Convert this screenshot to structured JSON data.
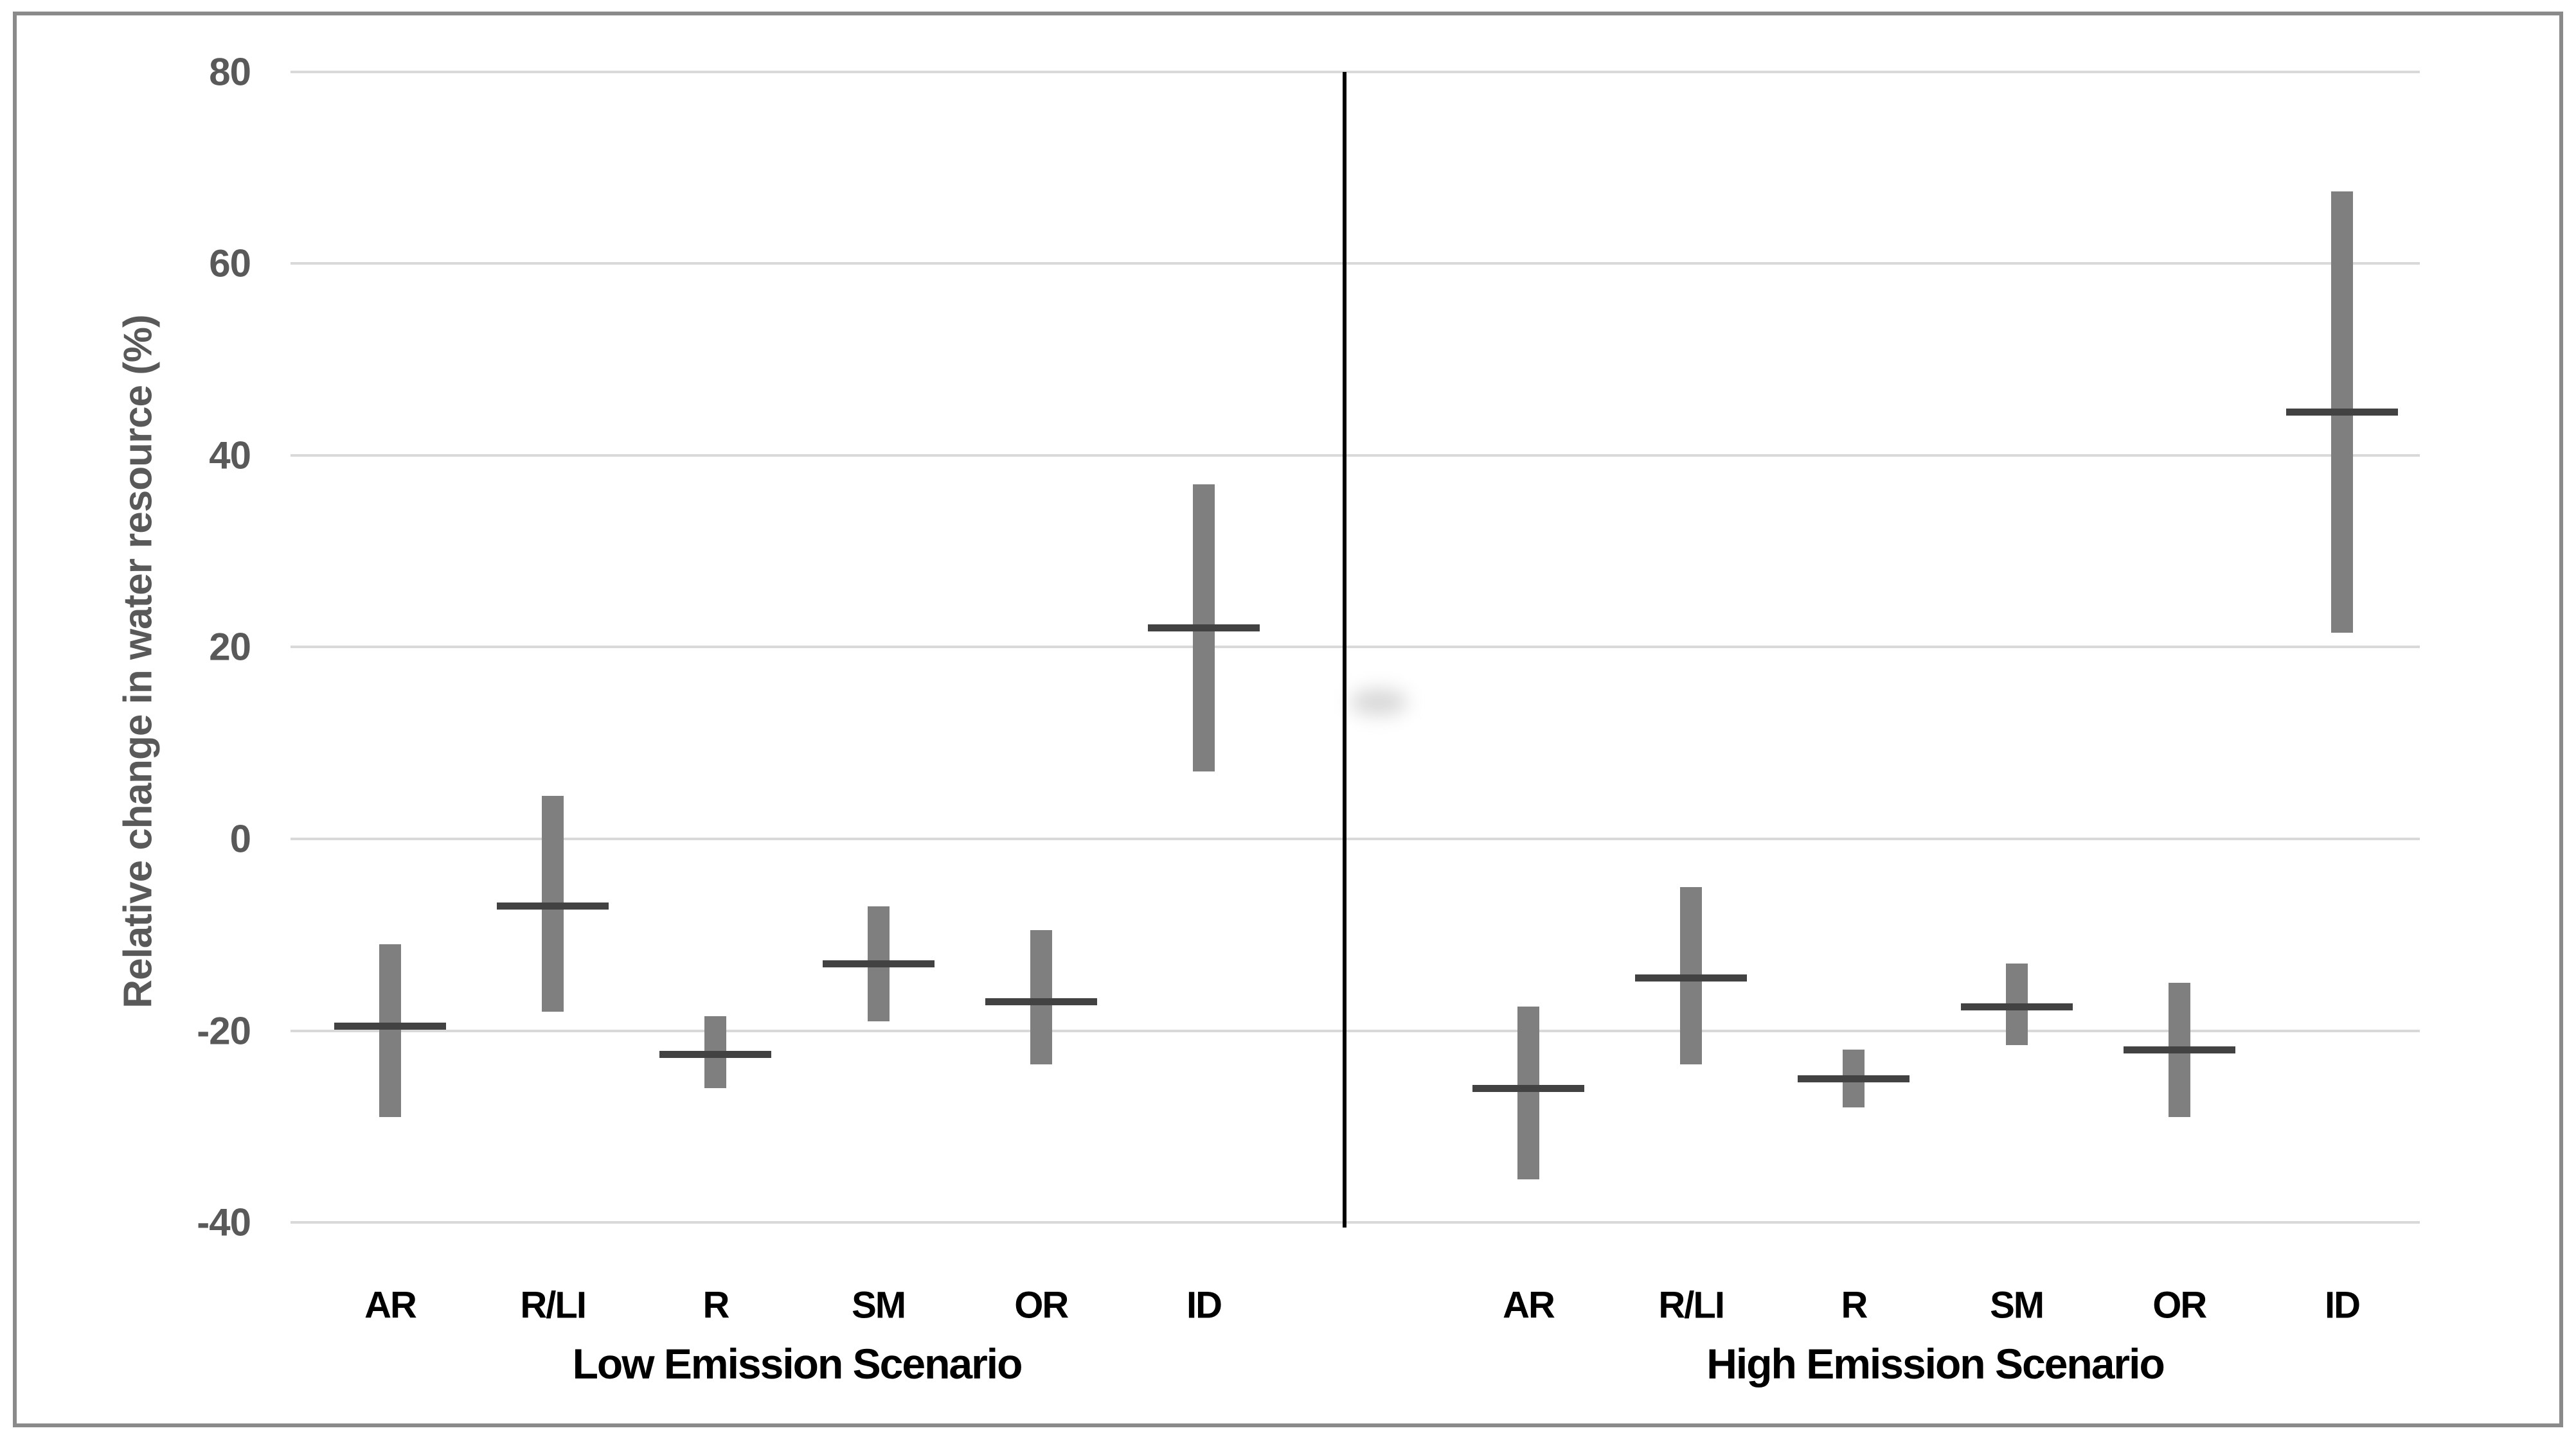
{
  "chart_data": {
    "type": "bar",
    "subtype": "floating-range-bars-with-mean-tick",
    "title": "",
    "xlabel": "",
    "ylabel": "Relative change in water resource (%)",
    "ylim": [
      -40,
      80
    ],
    "yticks": [
      80,
      60,
      40,
      20,
      0,
      -20,
      -40
    ],
    "grid": "horizontal",
    "legend_position": "none",
    "categories": [
      "AR",
      "R/LI",
      "R",
      "SM",
      "OR",
      "ID"
    ],
    "groups": [
      {
        "label": "Low Emission Scenario",
        "bars": [
          {
            "category": "AR",
            "low": -29,
            "high": -11,
            "mean": -19.5
          },
          {
            "category": "R/LI",
            "low": -18,
            "high": 4.5,
            "mean": -7
          },
          {
            "category": "R",
            "low": -26,
            "high": -18.5,
            "mean": -22.5
          },
          {
            "category": "SM",
            "low": -19,
            "high": -7,
            "mean": -13
          },
          {
            "category": "OR",
            "low": -23.5,
            "high": -9.5,
            "mean": -17
          },
          {
            "category": "ID",
            "low": 7,
            "high": 37,
            "mean": 22
          }
        ]
      },
      {
        "label": "High Emission Scenario",
        "bars": [
          {
            "category": "AR",
            "low": -35.5,
            "high": -17.5,
            "mean": -26
          },
          {
            "category": "R/LI",
            "low": -23.5,
            "high": -5,
            "mean": -14.5
          },
          {
            "category": "R",
            "low": -28,
            "high": -22,
            "mean": -25
          },
          {
            "category": "SM",
            "low": -21.5,
            "high": -13,
            "mean": -17.5
          },
          {
            "category": "OR",
            "low": -29,
            "high": -15,
            "mean": -22
          },
          {
            "category": "ID",
            "low": 21.5,
            "high": 67.5,
            "mean": 44.5
          }
        ]
      }
    ],
    "colors": {
      "bar": "#7f7f7f",
      "mean_tick": "#424242",
      "gridline": "#d9d9d9",
      "divider": "#000000",
      "border": "#8a8a8a",
      "axis_text": "#595959",
      "category_text": "#000000",
      "background": "#ffffff"
    }
  }
}
